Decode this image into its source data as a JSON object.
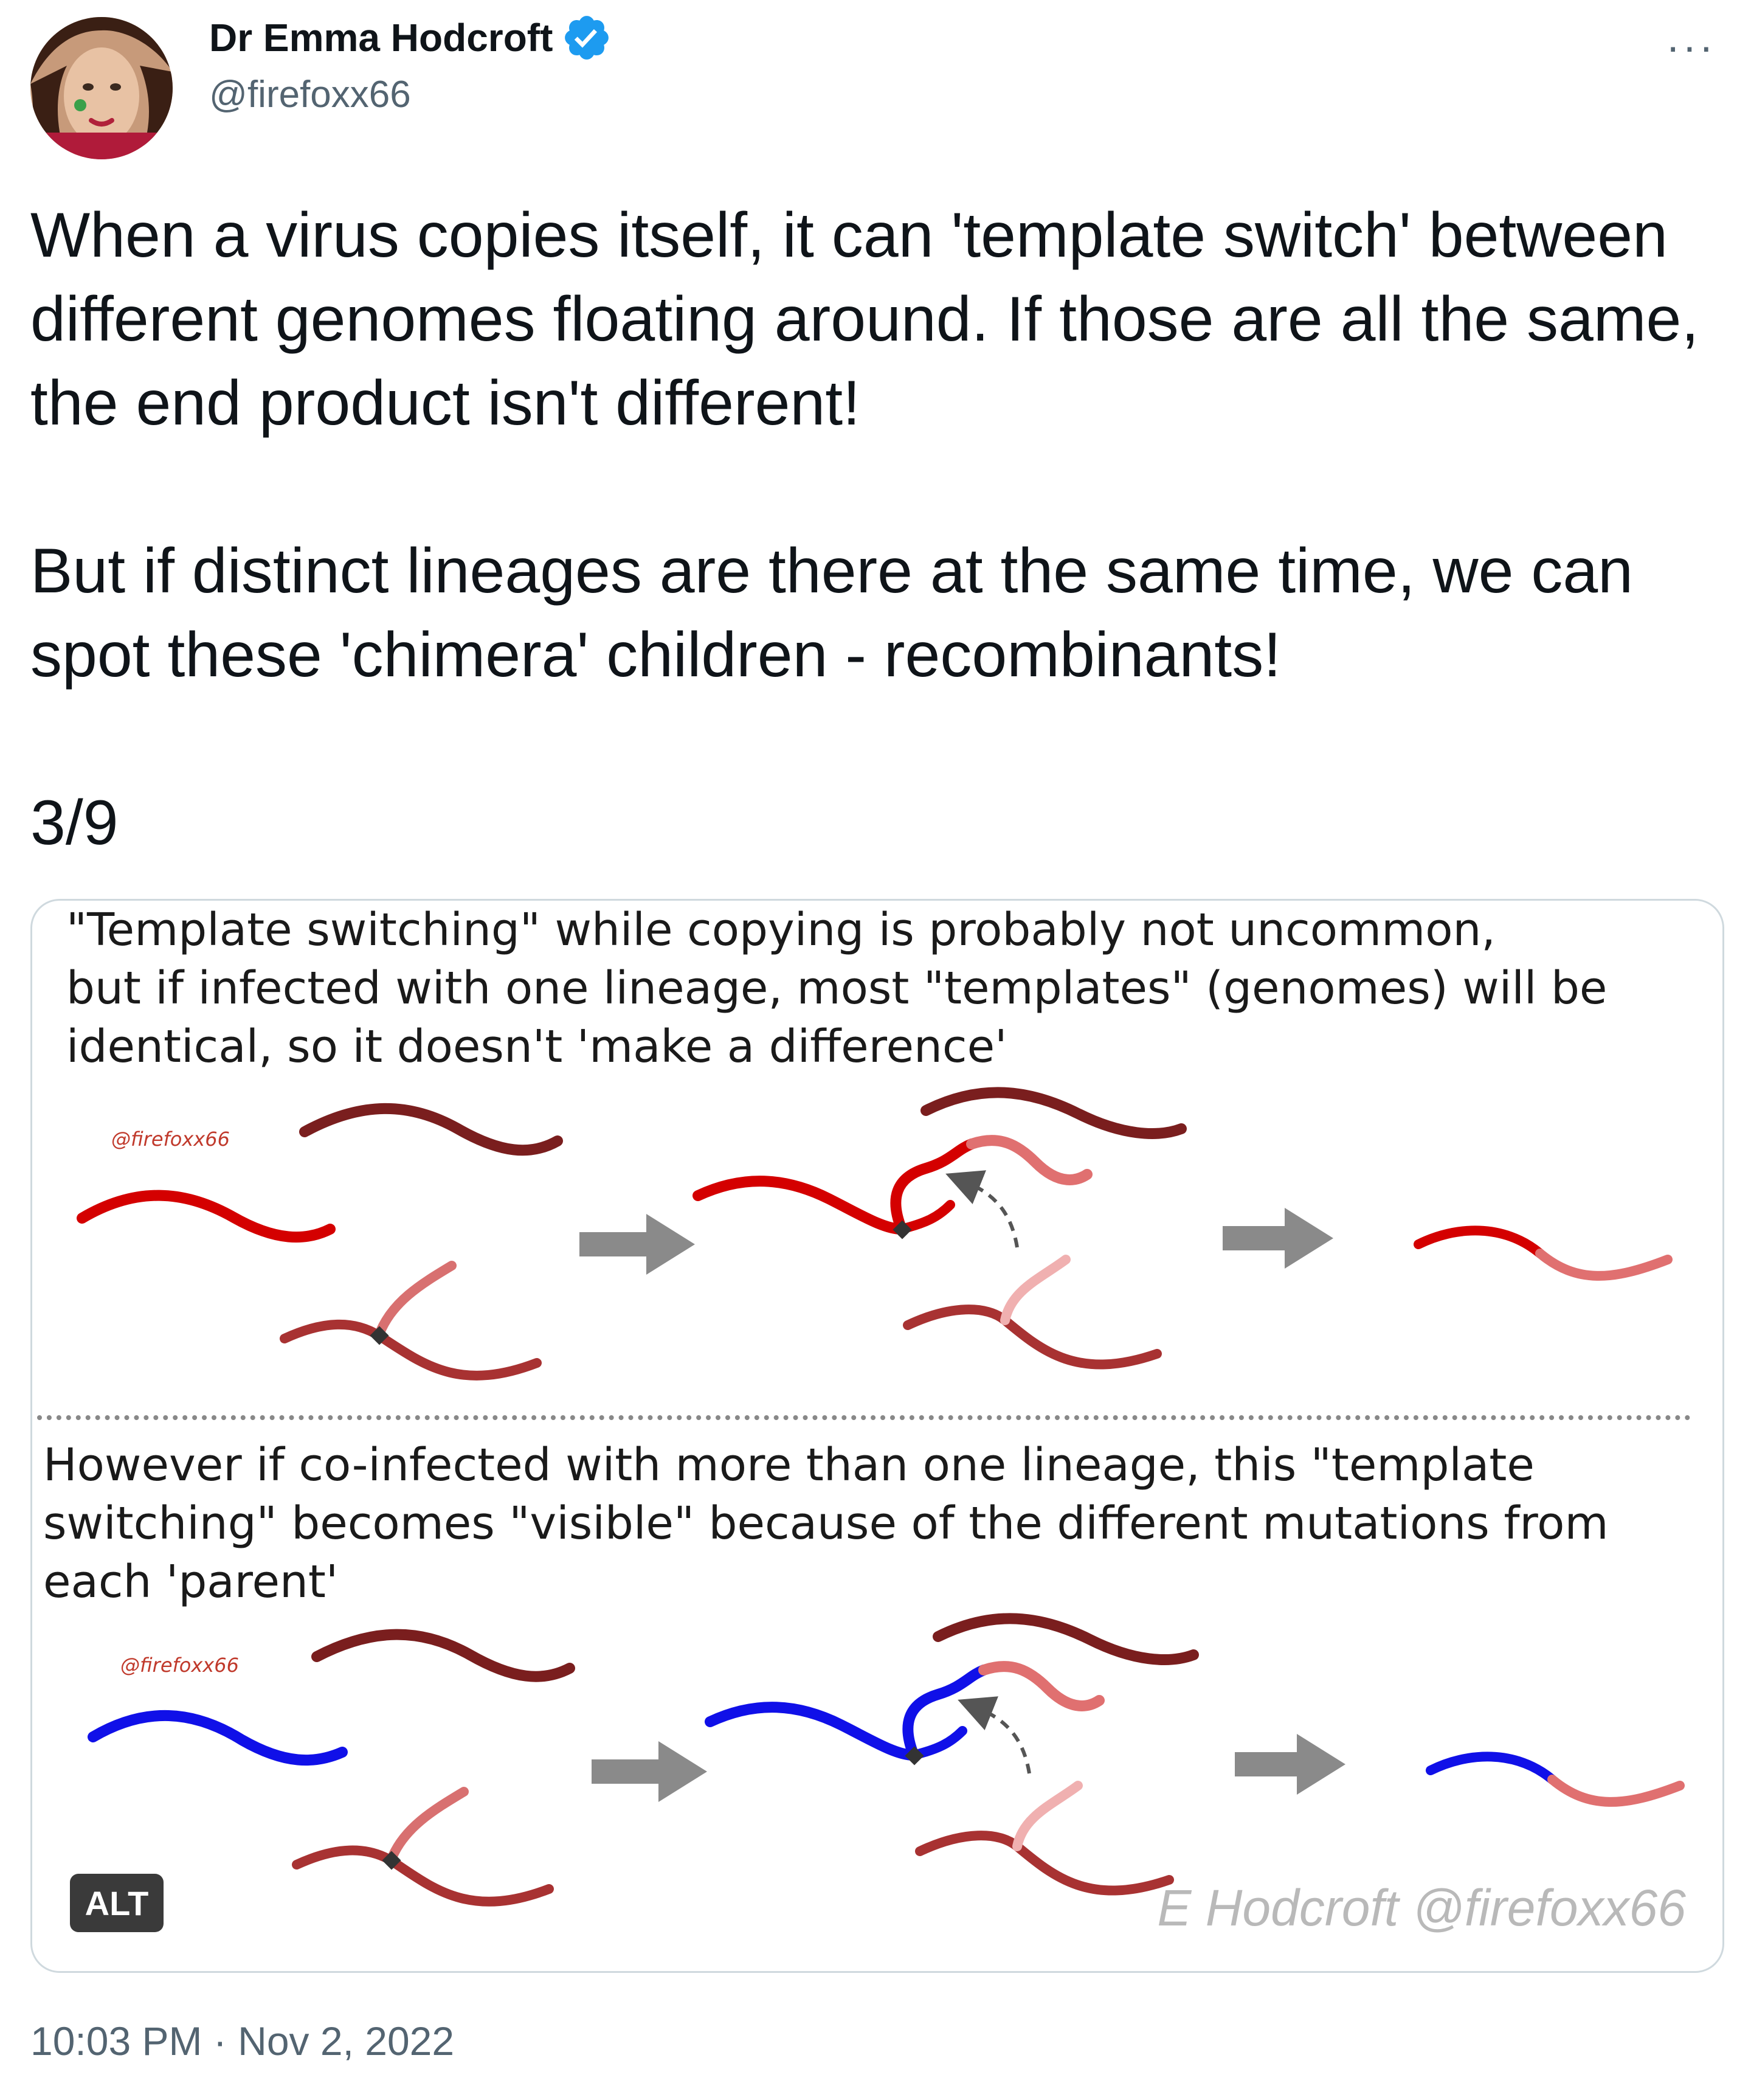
{
  "author": {
    "name": "Dr Emma Hodcroft",
    "handle": "@firefoxx66",
    "avatar_alt": "profile photo"
  },
  "menu": {
    "more_label": "···"
  },
  "tweet": {
    "text": "When a virus copies itself, it can 'template switch' between different genomes floating around. If those are all the same, the end product isn't different!\n\nBut if distinct lineages are there at the same time, we can spot these 'chimera' children - recombinants!\n\n3/9",
    "timestamp": "10:03 PM · Nov 2, 2022"
  },
  "media": {
    "caption_top": "\"Template switching\" while copying is probably not uncommon,\nbut if infected with one lineage, most \"templates\" (genomes) will be\nidentical, so it doesn't 'make a difference'",
    "caption_bottom": "However if co-infected with more than one lineage, this \"template\nswitching\" becomes \"visible\" because of the different mutations from\neach 'parent'",
    "watermark": "@firefoxx66",
    "credit": "E Hodcroft @firefoxx66",
    "alt_badge": "ALT"
  },
  "colors": {
    "red": "#d40000",
    "dark_red": "#7a1e1e",
    "mid_red": "#a83232",
    "light_red": "#e07070",
    "pale_red": "#f0b0b0",
    "blue": "#1010e8",
    "arrow_gray": "#8a8a8a",
    "verified_blue": "#1d9bf0"
  }
}
